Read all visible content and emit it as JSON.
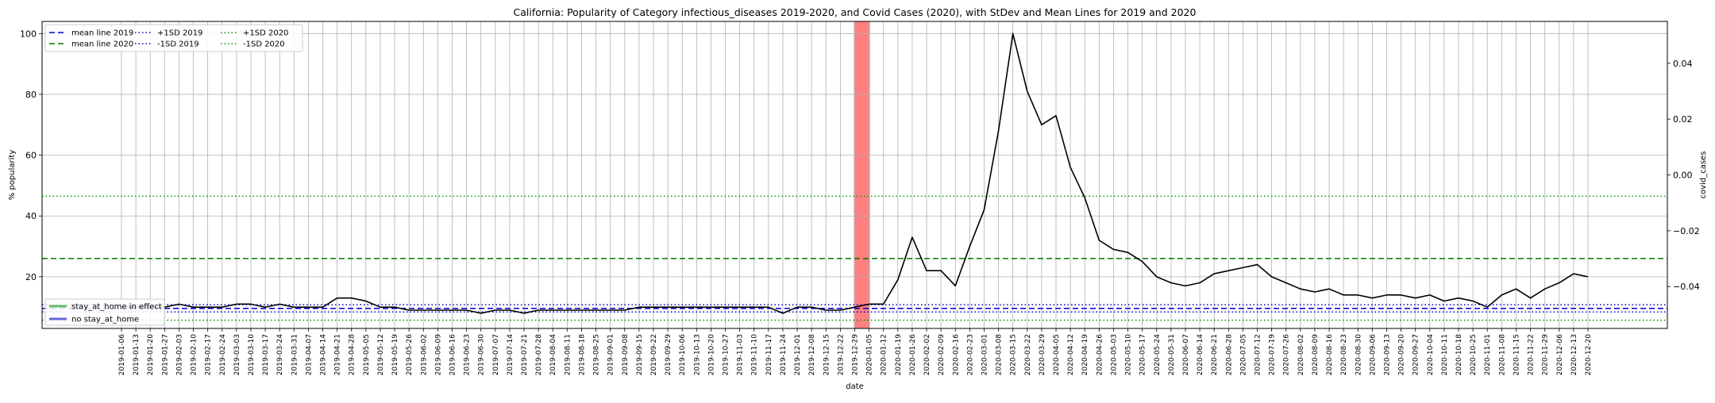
{
  "chart_data": {
    "type": "line",
    "title": "California: Popularity of Category infectious_diseases 2019-2020, and Covid Cases (2020), with StDev and Mean Lines for 2019 and 2020",
    "xlabel": "date",
    "ylabel": "% popularity",
    "y2label": "covid_cases",
    "ylim": [
      3,
      104
    ],
    "y2lim": [
      -0.055,
      0.055
    ],
    "grid": true,
    "yticks": [
      20,
      40,
      60,
      80,
      100
    ],
    "y2ticks": [
      "0.04",
      "0.02",
      "0.00",
      "−0.02",
      "−0.04"
    ],
    "y2tick_values": [
      0.04,
      0.02,
      0.0,
      -0.02,
      -0.04
    ],
    "x": [
      "2019-01-06",
      "2019-01-13",
      "2019-01-20",
      "2019-01-27",
      "2019-02-03",
      "2019-02-10",
      "2019-02-17",
      "2019-02-24",
      "2019-03-03",
      "2019-03-10",
      "2019-03-17",
      "2019-03-24",
      "2019-03-31",
      "2019-04-07",
      "2019-04-14",
      "2019-04-21",
      "2019-04-28",
      "2019-05-05",
      "2019-05-12",
      "2019-05-19",
      "2019-05-26",
      "2019-06-02",
      "2019-06-09",
      "2019-06-16",
      "2019-06-23",
      "2019-06-30",
      "2019-07-07",
      "2019-07-14",
      "2019-07-21",
      "2019-07-28",
      "2019-08-04",
      "2019-08-11",
      "2019-08-18",
      "2019-08-25",
      "2019-09-01",
      "2019-09-08",
      "2019-09-15",
      "2019-09-22",
      "2019-09-29",
      "2019-10-06",
      "2019-10-13",
      "2019-10-20",
      "2019-10-27",
      "2019-11-03",
      "2019-11-10",
      "2019-11-17",
      "2019-11-24",
      "2019-12-01",
      "2019-12-08",
      "2019-12-15",
      "2019-12-22",
      "2019-12-29",
      "2020-01-05",
      "2020-01-12",
      "2020-01-19",
      "2020-01-26",
      "2020-02-02",
      "2020-02-09",
      "2020-02-16",
      "2020-02-23",
      "2020-03-01",
      "2020-03-08",
      "2020-03-15",
      "2020-03-22",
      "2020-03-29",
      "2020-04-05",
      "2020-04-12",
      "2020-04-19",
      "2020-04-26",
      "2020-05-03",
      "2020-05-10",
      "2020-05-17",
      "2020-05-24",
      "2020-05-31",
      "2020-06-07",
      "2020-06-14",
      "2020-06-21",
      "2020-06-28",
      "2020-07-05",
      "2020-07-12",
      "2020-07-19",
      "2020-07-26",
      "2020-08-02",
      "2020-08-09",
      "2020-08-16",
      "2020-08-23",
      "2020-08-30",
      "2020-09-06",
      "2020-09-13",
      "2020-09-20",
      "2020-09-27",
      "2020-10-04",
      "2020-10-11",
      "2020-10-18",
      "2020-10-25",
      "2020-11-01",
      "2020-11-08",
      "2020-11-15",
      "2020-11-22",
      "2020-11-29",
      "2020-12-06",
      "2020-12-13",
      "2020-12-20"
    ],
    "series": [
      {
        "values": [
          10,
          10,
          10,
          10,
          11,
          10,
          10,
          10,
          11,
          11,
          10,
          11,
          10,
          10,
          10,
          13,
          13,
          12,
          10,
          10,
          9,
          9,
          9,
          9,
          9,
          8,
          9,
          9,
          8,
          9,
          9,
          9,
          9,
          9,
          9,
          9,
          10,
          10,
          10,
          10,
          10,
          10,
          10,
          10,
          10,
          10,
          8,
          10,
          10,
          9,
          9,
          10,
          11,
          11,
          19,
          33,
          22,
          22,
          17,
          30,
          42,
          68,
          100,
          81,
          70,
          73,
          56,
          46,
          32,
          29,
          28,
          25,
          20,
          18,
          17,
          18,
          21,
          22,
          23,
          24,
          20,
          18,
          16,
          15,
          16,
          14,
          14,
          13,
          14,
          14,
          13,
          14,
          12,
          13,
          12,
          10,
          14,
          16,
          13,
          16,
          18,
          21,
          20
        ],
        "color": "#000000"
      }
    ],
    "reference_lines": [
      {
        "name": "mean line 2019",
        "value": 9.6,
        "color": "#0000cc",
        "style": "dashed"
      },
      {
        "name": "mean line 2020",
        "value": 26.0,
        "color": "#007700",
        "style": "dashed"
      },
      {
        "name": "+1SD 2019",
        "value": 10.8,
        "color": "#0000cc",
        "style": "dotted"
      },
      {
        "name": "-1SD 2019",
        "value": 8.4,
        "color": "#0000cc",
        "style": "dotted"
      },
      {
        "name": "+1SD 2020",
        "value": 46.5,
        "color": "#009900",
        "style": "dotted"
      },
      {
        "name": "-1SD 2020",
        "value": 5.7,
        "color": "#009900",
        "style": "dotted"
      }
    ],
    "shaded_band": {
      "from": "2019-12-29",
      "to": "2020-01-05",
      "color": "#ff8080"
    },
    "legend_top": {
      "position": "top-left",
      "entries": [
        {
          "label": "mean line 2019",
          "color": "#0000cc",
          "style": "dashed"
        },
        {
          "label": "mean line 2020",
          "color": "#007700",
          "style": "dashed"
        },
        {
          "label": "+1SD 2019",
          "color": "#0000cc",
          "style": "dotted"
        },
        {
          "label": "-1SD 2019",
          "color": "#0000cc",
          "style": "dotted"
        },
        {
          "label": "+1SD 2020",
          "color": "#009900",
          "style": "dotted"
        },
        {
          "label": "-1SD 2020",
          "color": "#009900",
          "style": "dotted"
        }
      ]
    },
    "legend_bottom": {
      "position": "bottom-left",
      "entries": [
        {
          "label": "stay_at_home in effect",
          "color": "#66bb66"
        },
        {
          "label": "no stay_at_home",
          "color": "#6666dd"
        }
      ]
    }
  }
}
